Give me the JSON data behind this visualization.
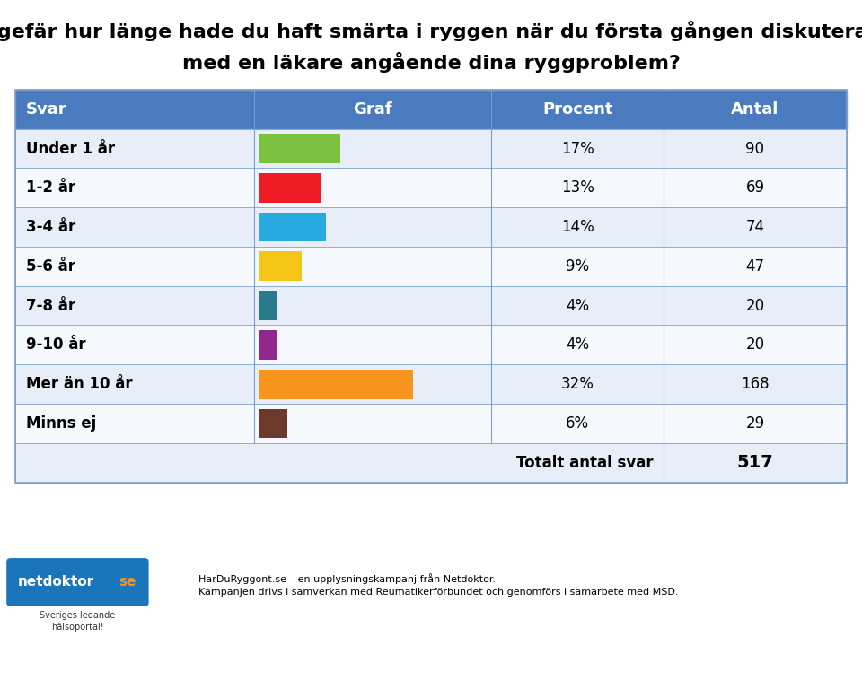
{
  "title_line1": "Ungefär hur länge hade du haft smärta i ryggen när du första gången diskuterade",
  "title_line2": "med en läkare angående dina ryggproblem?",
  "header": [
    "Svar",
    "Graf",
    "Procent",
    "Antal"
  ],
  "rows": [
    {
      "label": "Under 1 år",
      "percent": "17%",
      "antal": "90",
      "color": "#7DC142",
      "bar_pct": 17
    },
    {
      "label": "1-2 år",
      "percent": "13%",
      "antal": "69",
      "color": "#EE1C25",
      "bar_pct": 13
    },
    {
      "label": "3-4 år",
      "percent": "14%",
      "antal": "74",
      "color": "#29ABE2",
      "bar_pct": 14
    },
    {
      "label": "5-6 år",
      "percent": "9%",
      "antal": "47",
      "color": "#F5C518",
      "bar_pct": 9
    },
    {
      "label": "7-8 år",
      "percent": "4%",
      "antal": "20",
      "color": "#2B7A8C",
      "bar_pct": 4
    },
    {
      "label": "9-10 år",
      "percent": "4%",
      "antal": "20",
      "color": "#92278F",
      "bar_pct": 4
    },
    {
      "label": "Mer än 10 år",
      "percent": "32%",
      "antal": "168",
      "color": "#F7941D",
      "bar_pct": 32
    },
    {
      "label": "Minns ej",
      "percent": "6%",
      "antal": "29",
      "color": "#6B3A2A",
      "bar_pct": 6
    }
  ],
  "total_label": "Totalt antal svar",
  "total_value": "517",
  "header_bg": "#4A7BBF",
  "header_text": "#FFFFFF",
  "row_bg_odd": "#E8EEF7",
  "row_bg_even": "#F5F8FD",
  "total_row_bg": "#E8EEF7",
  "border_color": "#7A9FCC",
  "title_color": "#000000",
  "title_fontsize": 16,
  "header_fontsize": 13,
  "row_fontsize": 12,
  "footer_text1": "HarDuRyggont.se – en upplysningskampanj från Netdoktor.",
  "footer_text2": "Kampanjen drivs i samverkan med Reumatikerförbundet och genomförs i samarbete med MSD.",
  "background_color": "#FFFFFF"
}
